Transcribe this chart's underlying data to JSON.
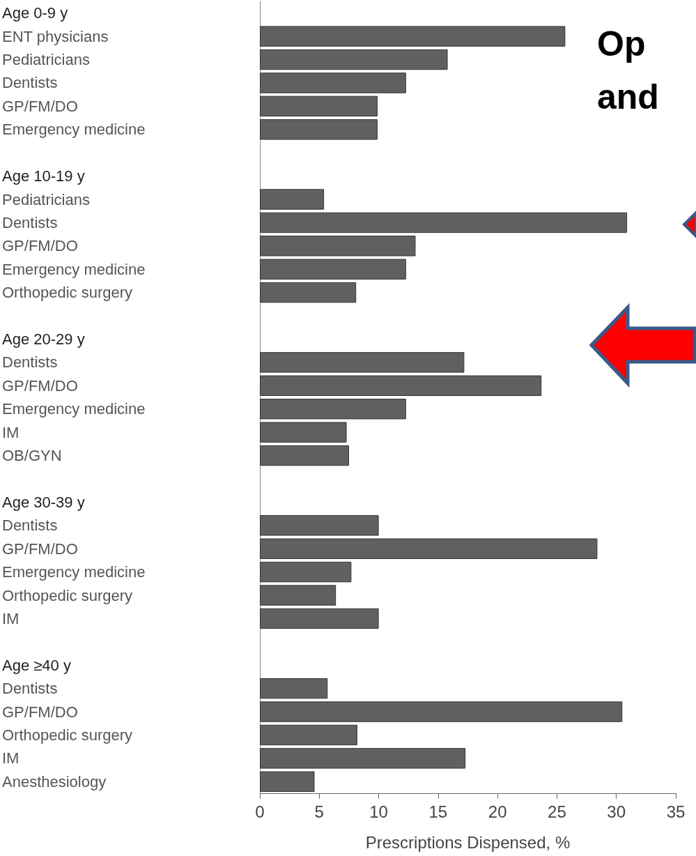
{
  "chart_data": {
    "type": "bar",
    "orientation": "horizontal",
    "title": "Op and",
    "categories": [
      "Age 0-9 y",
      "ENT physicians",
      "Pediatricians",
      "Dentists",
      "GP/FM/DO",
      "Emergency medicine",
      null,
      "Age 10-19 y",
      "Pediatricians",
      "Dentists",
      "GP/FM/DO",
      "Emergency medicine",
      "Orthopedic surgery",
      null,
      "Age 20-29 y",
      "Dentists",
      "GP/FM/DO",
      "Emergency medicine",
      "IM",
      "OB/GYN",
      null,
      "Age 30-39 y",
      "Dentists",
      "GP/FM/DO",
      "Emergency medicine",
      "Orthopedic surgery",
      "IM",
      null,
      "Age ≥40 y",
      "Dentists",
      "GP/FM/DO",
      "Orthopedic surgery",
      "IM",
      "Anesthesiology"
    ],
    "values": [
      null,
      25.7,
      15.8,
      12.3,
      9.9,
      9.9,
      null,
      null,
      5.4,
      30.9,
      13.1,
      12.3,
      8.1,
      null,
      null,
      17.2,
      23.7,
      12.3,
      7.3,
      7.5,
      null,
      null,
      10.0,
      28.4,
      7.7,
      6.4,
      10.0,
      null,
      null,
      5.7,
      30.5,
      8.2,
      17.3,
      4.6
    ],
    "color": "#606060",
    "xlabel": "Prescriptions Dispensed, %",
    "xlim": [
      0,
      35
    ],
    "xticks": [
      0,
      5,
      10,
      15,
      20,
      25,
      30,
      35
    ]
  }
}
